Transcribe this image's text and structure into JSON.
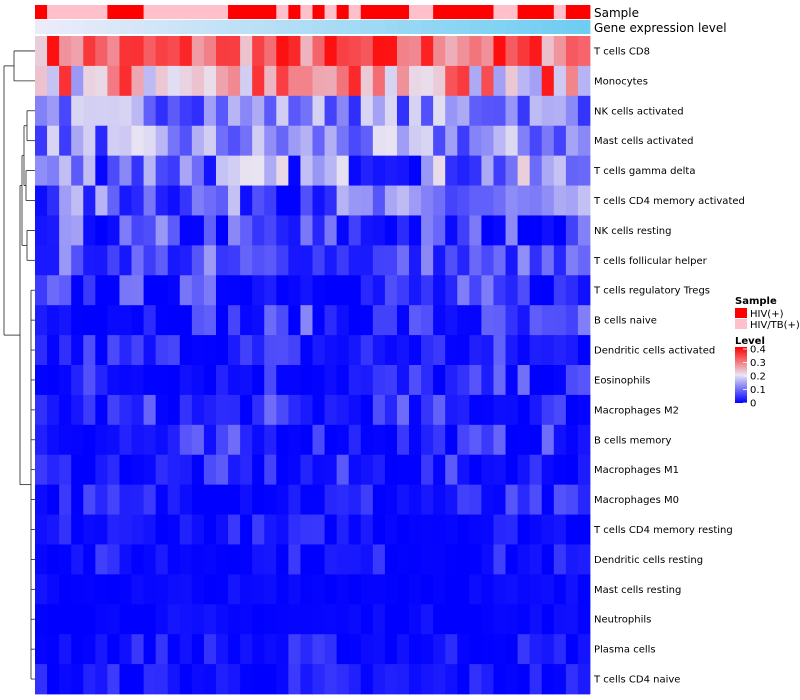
{
  "chart_data": {
    "type": "heatmap",
    "title": "",
    "rows": [
      "T cells CD8",
      "Monocytes",
      "NK cells activated",
      "Mast cells activated",
      "T cells gamma delta",
      "T cells CD4 memory activated",
      "NK cells resting",
      "T cells follicular helper",
      "T cells regulatory  Tregs",
      "B cells naive",
      "Dendritic cells activated",
      "Eosinophils",
      "Macrophages M2",
      "B cells memory",
      "Macrophages M1",
      "Macrophages M0",
      "T cells CD4 memory resting",
      "Dendritic cells resting",
      "Mast cells resting",
      "Neutrophils",
      "Plasma cells",
      "T cells CD4 naive"
    ],
    "n_columns": 46,
    "row_value_ranges": [
      [
        0.22,
        0.4
      ],
      [
        0.12,
        0.38
      ],
      [
        0.04,
        0.2
      ],
      [
        0.03,
        0.2
      ],
      [
        0.0,
        0.22
      ],
      [
        0.0,
        0.17
      ],
      [
        0.0,
        0.15
      ],
      [
        0.02,
        0.15
      ],
      [
        0.0,
        0.12
      ],
      [
        0.0,
        0.12
      ],
      [
        0.0,
        0.1
      ],
      [
        0.0,
        0.1
      ],
      [
        0.0,
        0.1
      ],
      [
        0.0,
        0.1
      ],
      [
        0.0,
        0.08
      ],
      [
        0.0,
        0.08
      ],
      [
        0.0,
        0.06
      ],
      [
        0.0,
        0.06
      ],
      [
        0.0,
        0.02
      ],
      [
        0.0,
        0.02
      ],
      [
        0.0,
        0.06
      ],
      [
        0.0,
        0.06
      ]
    ],
    "annotations": [
      {
        "name": "Sample",
        "values": [
          "HIV(+)",
          "HIV/TB(+)",
          "HIV/TB(+)",
          "HIV/TB(+)",
          "HIV/TB(+)",
          "HIV/TB(+)",
          "HIV(+)",
          "HIV(+)",
          "HIV(+)",
          "HIV/TB(+)",
          "HIV/TB(+)",
          "HIV/TB(+)",
          "HIV/TB(+)",
          "HIV/TB(+)",
          "HIV/TB(+)",
          "HIV/TB(+)",
          "HIV(+)",
          "HIV(+)",
          "HIV(+)",
          "HIV(+)",
          "HIV/TB(+)",
          "HIV(+)",
          "HIV/TB(+)",
          "HIV(+)",
          "HIV/TB(+)",
          "HIV(+)",
          "HIV/TB(+)",
          "HIV(+)",
          "HIV(+)",
          "HIV(+)",
          "HIV(+)",
          "HIV/TB(+)",
          "HIV/TB(+)",
          "HIV(+)",
          "HIV(+)",
          "HIV(+)",
          "HIV(+)",
          "HIV(+)",
          "HIV/TB(+)",
          "HIV/TB(+)",
          "HIV(+)",
          "HIV(+)",
          "HIV(+)",
          "HIV/TB(+)",
          "HIV(+)",
          "HIV(+)"
        ]
      },
      {
        "name": "Gene expression level",
        "values_description": "gradient",
        "color_start": "#ececf9",
        "color_end": "#6ecdf2"
      }
    ],
    "legends": [
      {
        "title": "Sample",
        "entries": [
          {
            "label": "HIV(+)",
            "color": "#ff0000"
          },
          {
            "label": "HIV/TB(+)",
            "color": "#ffc0cb"
          }
        ]
      },
      {
        "title": "Level",
        "ticks": [
          0.4,
          0.3,
          0.2,
          0.1,
          0
        ],
        "tick_labels": [
          "0.4",
          "0.3",
          "0.2",
          "0.1",
          "0"
        ],
        "colors": {
          "low": "#0000ff",
          "mid": "#e8e4f2",
          "high": "#ff0000"
        },
        "range": [
          0,
          0.4
        ]
      }
    ],
    "dendrogram": "rows",
    "legend_position": "right"
  }
}
